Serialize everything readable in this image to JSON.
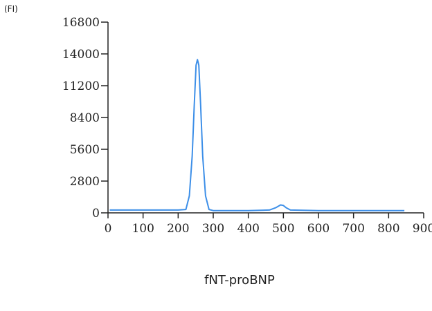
{
  "chart_data": {
    "type": "line",
    "title": "fNT-proBNP",
    "ylabel": "(FI)",
    "xlabel": "",
    "xlim": [
      0,
      900
    ],
    "ylim": [
      0,
      16800
    ],
    "x_ticks": [
      0,
      100,
      200,
      300,
      400,
      500,
      600,
      700,
      800,
      900
    ],
    "y_ticks": [
      0,
      2800,
      5600,
      8400,
      11200,
      14000,
      16800
    ],
    "grid": false,
    "series": [
      {
        "color": "#3d8fe8",
        "points": [
          [
            5,
            250
          ],
          [
            100,
            250
          ],
          [
            200,
            250
          ],
          [
            222,
            300
          ],
          [
            232,
            1500
          ],
          [
            240,
            5000
          ],
          [
            246,
            9500
          ],
          [
            251,
            13000
          ],
          [
            255,
            13500
          ],
          [
            259,
            13000
          ],
          [
            264,
            9500
          ],
          [
            270,
            5000
          ],
          [
            278,
            1500
          ],
          [
            288,
            300
          ],
          [
            300,
            200
          ],
          [
            400,
            200
          ],
          [
            460,
            250
          ],
          [
            478,
            450
          ],
          [
            492,
            700
          ],
          [
            500,
            650
          ],
          [
            508,
            450
          ],
          [
            520,
            250
          ],
          [
            600,
            200
          ],
          [
            700,
            200
          ],
          [
            800,
            200
          ],
          [
            845,
            200
          ]
        ]
      }
    ]
  }
}
